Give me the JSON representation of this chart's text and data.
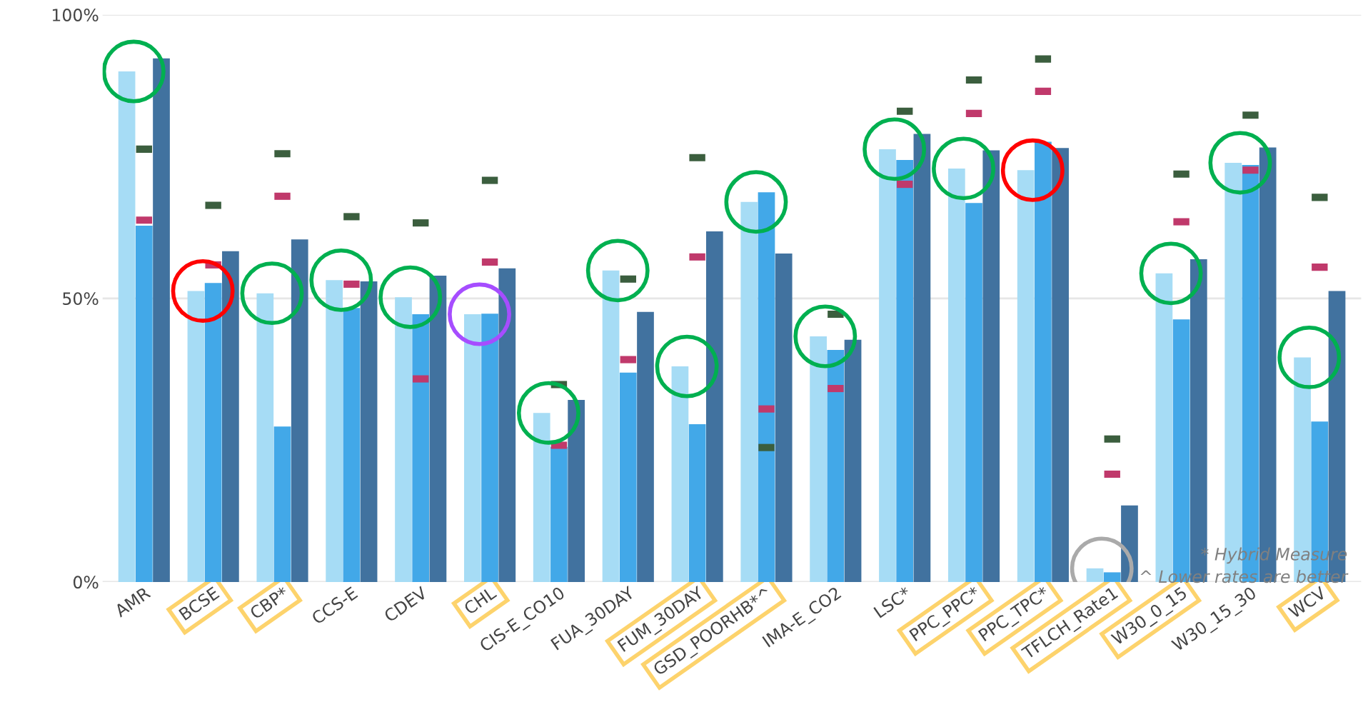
{
  "chart_data": {
    "type": "bar",
    "categories": [
      "AMR",
      "BCSE",
      "CBP*",
      "CCS-E",
      "CDEV",
      "CHL",
      "CIS-E_CO10",
      "FUA_30DAY",
      "FUM_30DAY",
      "GSD_POORHB*^",
      "IMA-E_CO2",
      "LSC*",
      "PPC_PPC*",
      "PPC_TPC*",
      "TFLCH_Rate1",
      "W30_0_15",
      "W30_15_30",
      "WCV"
    ],
    "series": [
      {
        "color": "#a6dcf5",
        "values": [
          90.0,
          51.3,
          50.9,
          53.2,
          50.2,
          47.2,
          29.8,
          54.9,
          38.0,
          67.0,
          43.3,
          76.3,
          72.9,
          72.6,
          2.4,
          54.4,
          73.9,
          39.6
        ]
      },
      {
        "color": "#42a8e8",
        "values": [
          62.8,
          52.7,
          27.4,
          48.3,
          47.2,
          47.3,
          23.8,
          36.9,
          27.8,
          68.7,
          40.9,
          74.4,
          66.8,
          77.6,
          1.7,
          46.3,
          73.5,
          28.3
        ]
      },
      {
        "color": "#41729f",
        "values": [
          92.3,
          58.3,
          60.4,
          53.0,
          54.0,
          55.3,
          32.1,
          47.6,
          61.8,
          57.9,
          42.7,
          79.0,
          76.1,
          76.5,
          13.5,
          56.9,
          76.6,
          51.3
        ]
      },
      {
        "type": "scatter",
        "color": "#3b5e3e",
        "x": [
          "AMR",
          "BCSE",
          "CBP*",
          "CCS-E",
          "CDEV",
          "CHL",
          "CIS-E_CO10",
          "FUA_30DAY",
          "FUM_30DAY",
          "GSD_POORHB*^",
          "IMA-E_CO2",
          "LSC*",
          "PPC_PPC*",
          "PPC_TPC*",
          "TFLCH_Rate1",
          "W30_0_15",
          "W30_15_30",
          "WCV"
        ],
        "values": [
          76.3,
          66.4,
          75.5,
          64.4,
          63.3,
          70.8,
          34.8,
          53.4,
          74.8,
          23.7,
          47.2,
          83.0,
          88.5,
          92.2,
          25.2,
          71.9,
          82.3,
          67.8
        ]
      },
      {
        "type": "scatter",
        "color": "#c0396b",
        "x": [
          "AMR",
          "BCSE",
          "CBP*",
          "CCS-E",
          "CDEV",
          "CHL",
          "CIS-E_CO10",
          "FUA_30DAY",
          "FUM_30DAY",
          "GSD_POORHB*^",
          "IMA-E_CO2",
          "LSC*",
          "PPC_PPC*",
          "PPC_TPC*",
          "TFLCH_Rate1",
          "W30_0_15",
          "W30_15_30",
          "WCV"
        ],
        "values": [
          63.8,
          55.9,
          68.0,
          52.5,
          35.8,
          56.4,
          24.1,
          39.2,
          57.3,
          30.5,
          34.1,
          70.1,
          82.6,
          86.5,
          19.0,
          63.5,
          72.6,
          55.5
        ]
      }
    ],
    "ylim": [
      0,
      100
    ],
    "yticks": [
      {
        "value": 0,
        "label": "0%"
      },
      {
        "value": 50,
        "label": "50%"
      },
      {
        "value": 100,
        "label": "100%"
      }
    ],
    "grid": "y",
    "annotations": [
      "* Hybrid Measure",
      "^ Lower rates are better"
    ]
  }
}
